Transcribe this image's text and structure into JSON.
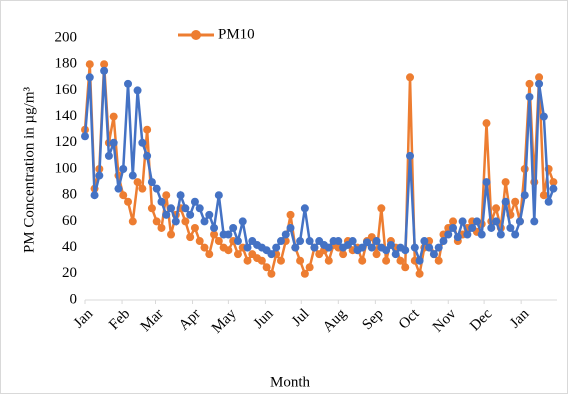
{
  "chart_data": {
    "type": "line",
    "x": [
      0,
      4,
      8,
      12,
      16,
      20,
      24,
      28,
      32,
      36,
      40,
      44,
      48,
      52,
      56,
      60,
      64,
      68,
      72,
      76,
      80,
      84,
      88,
      92,
      96,
      100,
      104,
      108,
      112,
      116,
      120,
      124,
      128,
      132,
      136,
      140,
      144,
      148,
      152,
      156,
      160,
      164,
      168,
      172,
      176,
      180,
      184,
      188,
      192,
      196,
      200,
      204,
      208,
      212,
      216,
      220,
      224,
      228,
      232,
      236,
      240,
      244,
      248,
      252,
      256,
      260,
      264,
      268,
      272,
      276,
      280,
      284,
      288,
      292,
      296,
      300,
      304,
      308,
      312,
      316,
      320,
      324,
      328,
      332,
      336,
      340,
      344,
      348,
      352,
      356,
      360,
      364,
      368,
      372,
      376,
      380,
      384,
      388,
      392
    ],
    "series": [
      {
        "name": "PM10",
        "color": "#ed7d31",
        "values": [
          130,
          180,
          85,
          100,
          180,
          120,
          140,
          95,
          80,
          75,
          60,
          90,
          85,
          130,
          70,
          60,
          55,
          80,
          50,
          65,
          70,
          60,
          48,
          55,
          45,
          40,
          35,
          50,
          45,
          40,
          38,
          45,
          35,
          40,
          30,
          35,
          32,
          30,
          25,
          20,
          35,
          30,
          45,
          65,
          40,
          30,
          20,
          25,
          40,
          35,
          38,
          30,
          42,
          40,
          35,
          45,
          38,
          40,
          30,
          45,
          48,
          35,
          70,
          30,
          45,
          40,
          30,
          25,
          170,
          30,
          20,
          40,
          45,
          35,
          30,
          50,
          55,
          60,
          45,
          50,
          55,
          60,
          52,
          58,
          135,
          60,
          70,
          55,
          90,
          65,
          75,
          60,
          100,
          165,
          90,
          170,
          80,
          100,
          90
        ]
      },
      {
        "color": "#4472c4",
        "values": [
          125,
          170,
          80,
          95,
          175,
          110,
          120,
          85,
          100,
          165,
          95,
          160,
          120,
          110,
          90,
          85,
          75,
          65,
          70,
          60,
          80,
          70,
          65,
          75,
          70,
          60,
          65,
          55,
          80,
          50,
          50,
          55,
          45,
          60,
          40,
          45,
          42,
          40,
          38,
          35,
          40,
          45,
          50,
          55,
          40,
          45,
          70,
          45,
          40,
          45,
          42,
          40,
          45,
          45,
          40,
          42,
          45,
          38,
          40,
          44,
          40,
          45,
          40,
          38,
          42,
          35,
          40,
          38,
          110,
          40,
          30,
          45,
          40,
          35,
          40,
          45,
          50,
          55,
          48,
          60,
          50,
          55,
          60,
          50,
          90,
          55,
          60,
          50,
          75,
          55,
          50,
          60,
          80,
          155,
          60,
          165,
          140,
          75,
          85
        ]
      }
    ],
    "xlim": [
      0,
      395
    ],
    "xticks": [
      {
        "value": 0,
        "label": "Jan"
      },
      {
        "value": 31,
        "label": "Feb"
      },
      {
        "value": 59,
        "label": "Mar"
      },
      {
        "value": 90,
        "label": "Apr"
      },
      {
        "value": 120,
        "label": "May"
      },
      {
        "value": 151,
        "label": "Jun"
      },
      {
        "value": 181,
        "label": "Jul"
      },
      {
        "value": 212,
        "label": "Aug"
      },
      {
        "value": 243,
        "label": "Sep"
      },
      {
        "value": 273,
        "label": "Oct"
      },
      {
        "value": 304,
        "label": "Nov"
      },
      {
        "value": 334,
        "label": "Dec"
      },
      {
        "value": 365,
        "label": "Jan"
      }
    ],
    "ylim": [
      0,
      200
    ],
    "yticks": [
      0,
      20,
      40,
      60,
      80,
      100,
      120,
      140,
      160,
      180,
      200
    ],
    "x_label": "Month",
    "y_label": "PM Concentration in µg/m³",
    "legend": "top"
  }
}
